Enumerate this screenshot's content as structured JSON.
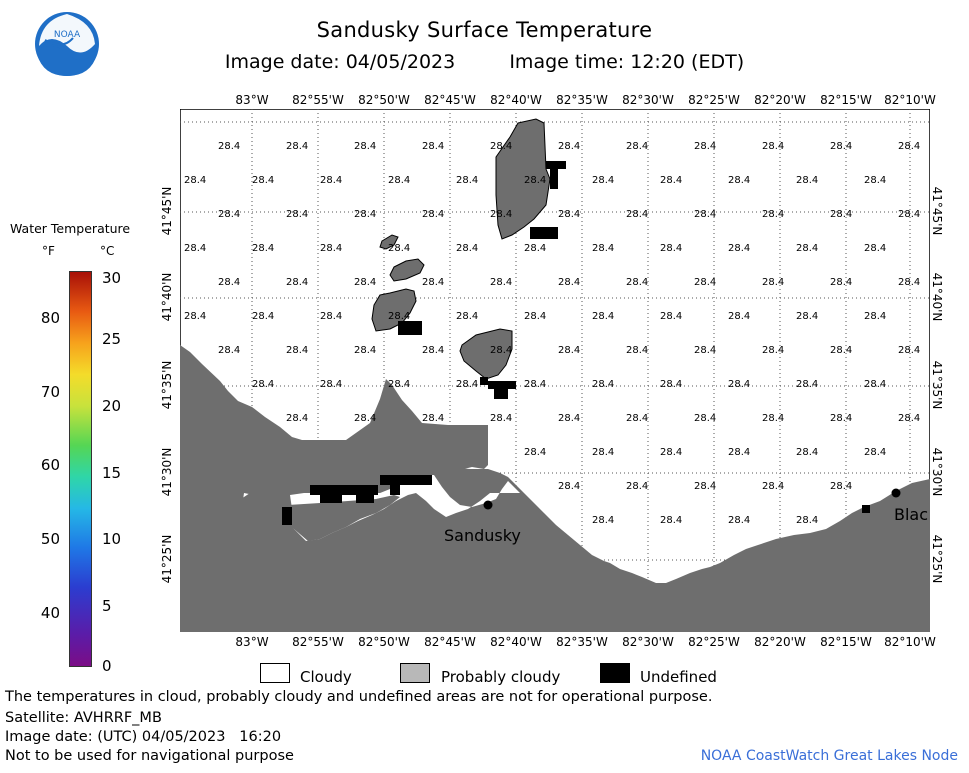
{
  "header": {
    "title": "Sandusky Surface Temperature",
    "image_date": "Image date: 04/05/2023",
    "image_time": "Image time: 12:20 (EDT)"
  },
  "logo": {
    "text": "NOAA",
    "icon": "noaa-logo-icon"
  },
  "legend": {
    "title": "Water Temperature",
    "unit_f": "°F",
    "unit_c": "°C",
    "f_ticks": [
      "80",
      "70",
      "60",
      "50",
      "40"
    ],
    "c_ticks": [
      "30",
      "25",
      "20",
      "15",
      "10",
      "5",
      "0"
    ],
    "scale_colors": [
      "#7b0d86",
      "#2b3dd0",
      "#25b8e6",
      "#55d654",
      "#f4dc2a",
      "#e85a12",
      "#a81008"
    ]
  },
  "map": {
    "lon_labels": [
      "83°W",
      "82°55'W",
      "82°50'W",
      "82°45'W",
      "82°40'W",
      "82°35'W",
      "82°30'W",
      "82°25'W",
      "82°20'W",
      "82°15'W",
      "82°10'W"
    ],
    "lat_labels": [
      "41°45'N",
      "41°40'N",
      "41°35'N",
      "41°30'N",
      "41°25'N"
    ],
    "temperature_value": "28.4",
    "city_sandusky": "Sandusky",
    "city_blac": "Blac",
    "colors": {
      "land": "#6e6e6e",
      "cloudy": "#ffffff",
      "probably_cloudy": "#6e6e6e",
      "undefined": "#000000",
      "grid": "#555555"
    }
  },
  "key": {
    "cloudy": "Cloudy",
    "probably_cloudy": "Probably cloudy",
    "undefined": "Undefined"
  },
  "footer": {
    "note": "The temperatures in cloud, probably cloudy and undefined areas are not for operational purpose.",
    "satellite": "Satellite: AVHRRF_MB",
    "utc_date": "Image date: (UTC) 04/05/2023   16:20",
    "nav_warning": "Not to be used for navigational purpose",
    "credit": "NOAA CoastWatch Great Lakes Node"
  }
}
